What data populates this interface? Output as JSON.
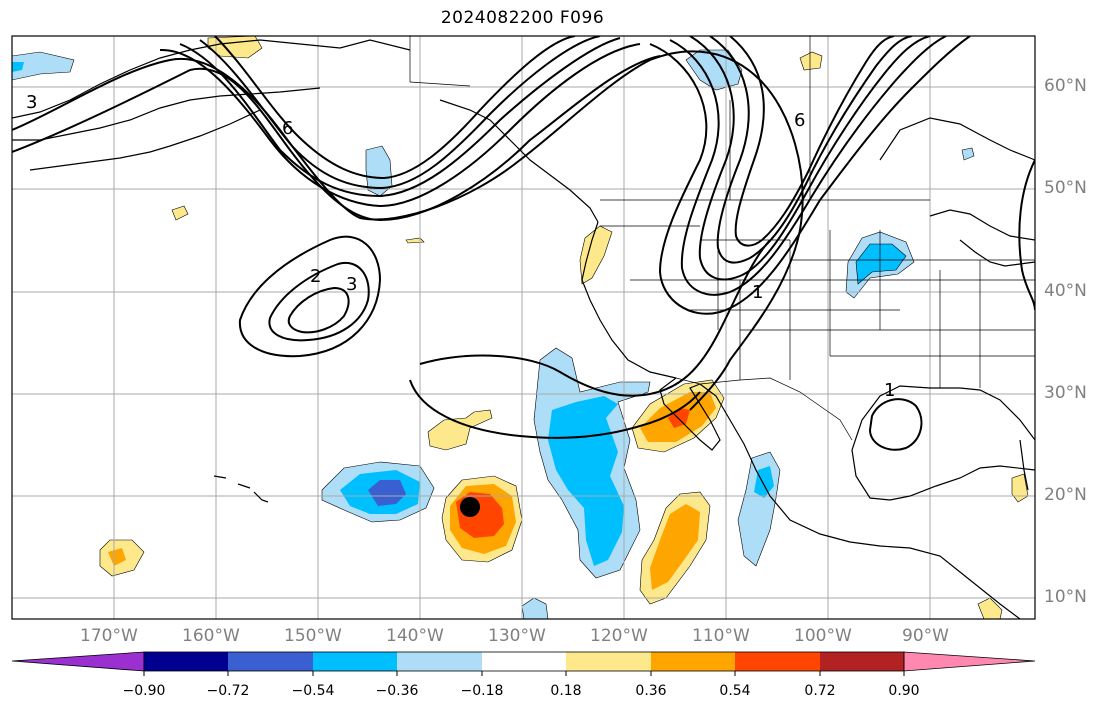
{
  "title": "2024082200 F096",
  "map": {
    "lon_range": [
      -180,
      -80
    ],
    "lat_range": [
      8,
      65
    ],
    "grid_lons": [
      -170,
      -160,
      -150,
      -140,
      -130,
      -120,
      -110,
      -100,
      -90
    ],
    "grid_lats": [
      10,
      20,
      30,
      40,
      50,
      60
    ],
    "lon_labels": [
      "170°W",
      "160°W",
      "150°W",
      "140°W",
      "130°W",
      "120°W",
      "110°W",
      "100°W",
      "90°W"
    ],
    "lat_labels": [
      "10°N",
      "20°N",
      "30°N",
      "40°N",
      "50°N",
      "60°N"
    ],
    "contour_labels": [
      "1",
      "1",
      "2",
      "3",
      "3",
      "6",
      "6"
    ],
    "storm_marker": "tropical-cyclone-center"
  },
  "colorbar": {
    "colors": [
      "#9b30d0",
      "#000090",
      "#3a5fd0",
      "#00bfff",
      "#aeddf8",
      "#ffffff",
      "#fde98c",
      "#ffa500",
      "#ff4500",
      "#b22222",
      "#ff88b0"
    ],
    "tick_labels": [
      "−0.90",
      "−0.72",
      "−0.54",
      "−0.36",
      "−0.18",
      "0.18",
      "0.36",
      "0.54",
      "0.72",
      "0.90"
    ]
  }
}
